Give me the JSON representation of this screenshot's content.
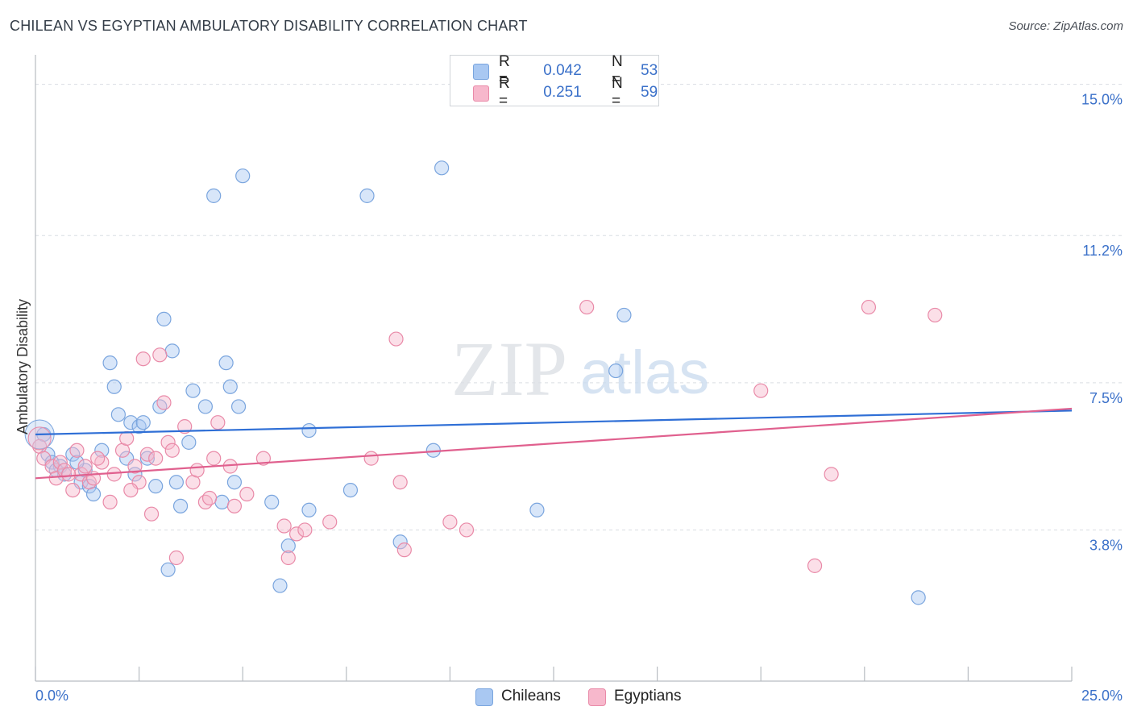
{
  "title": "CHILEAN VS EGYPTIAN AMBULATORY DISABILITY CORRELATION CHART",
  "source": "Source: ZipAtlas.com",
  "watermark": {
    "zip": "ZIP",
    "atlas": "atlas"
  },
  "legend_top": [
    {
      "r_label": "R =",
      "r_value": "0.042",
      "n_label": "N =",
      "n_value": "53",
      "color": "#a9c8f2"
    },
    {
      "r_label": "R =",
      "r_value": "0.251",
      "n_label": "N =",
      "n_value": "59",
      "color": "#f7b8cc"
    }
  ],
  "legend_bottom": [
    {
      "label": "Chileans",
      "color": "#a9c8f2"
    },
    {
      "label": "Egyptians",
      "color": "#f7b8cc"
    }
  ],
  "chart_data": {
    "type": "scatter",
    "title": "CHILEAN VS EGYPTIAN AMBULATORY DISABILITY CORRELATION CHART",
    "xlabel": "",
    "ylabel": "Ambulatory Disability",
    "xlim": [
      0,
      25
    ],
    "ylim": [
      0,
      15.5
    ],
    "x_tick_labels": [
      {
        "value": 0,
        "label": "0.0%"
      },
      {
        "value": 25,
        "label": "25.0%"
      }
    ],
    "y_tick_labels": [
      {
        "value": 15.0,
        "label": "15.0%"
      },
      {
        "value": 11.2,
        "label": "11.2%"
      },
      {
        "value": 7.5,
        "label": "7.5%"
      },
      {
        "value": 3.8,
        "label": "3.8%"
      }
    ],
    "x_minor_ticks": [
      0,
      2.5,
      5,
      7.5,
      10,
      12.5,
      15,
      17.5,
      20,
      22.5,
      25
    ],
    "grid": true,
    "series": [
      {
        "name": "Chileans",
        "color": "#a9c8f2",
        "stroke": "#7aa5de",
        "trend_color": "#2f6fd6",
        "trend": [
          [
            0,
            6.2
          ],
          [
            25,
            6.8
          ]
        ],
        "points": [
          [
            0.2,
            6.2
          ],
          [
            0.3,
            5.7
          ],
          [
            0.4,
            5.5
          ],
          [
            0.6,
            5.4
          ],
          [
            0.7,
            5.2
          ],
          [
            0.9,
            5.7
          ],
          [
            1.1,
            5.0
          ],
          [
            1.2,
            5.3
          ],
          [
            1.3,
            4.9
          ],
          [
            1.4,
            4.7
          ],
          [
            1.6,
            5.8
          ],
          [
            1.8,
            8.0
          ],
          [
            1.9,
            7.4
          ],
          [
            2.0,
            6.7
          ],
          [
            2.2,
            5.6
          ],
          [
            2.3,
            6.5
          ],
          [
            2.4,
            5.2
          ],
          [
            2.5,
            6.4
          ],
          [
            2.6,
            6.5
          ],
          [
            2.7,
            5.6
          ],
          [
            3.0,
            6.9
          ],
          [
            3.1,
            9.1
          ],
          [
            3.2,
            2.8
          ],
          [
            3.3,
            8.3
          ],
          [
            3.4,
            5.0
          ],
          [
            3.5,
            4.4
          ],
          [
            3.7,
            6.0
          ],
          [
            3.8,
            7.3
          ],
          [
            4.1,
            6.9
          ],
          [
            4.3,
            12.2
          ],
          [
            4.5,
            4.5
          ],
          [
            4.6,
            8.0
          ],
          [
            4.7,
            7.4
          ],
          [
            4.8,
            5.0
          ],
          [
            4.9,
            6.9
          ],
          [
            5.0,
            12.7
          ],
          [
            5.7,
            4.5
          ],
          [
            5.9,
            2.4
          ],
          [
            6.1,
            3.4
          ],
          [
            6.6,
            4.3
          ],
          [
            6.6,
            6.3
          ],
          [
            7.6,
            4.8
          ],
          [
            8.0,
            12.2
          ],
          [
            8.8,
            3.5
          ],
          [
            9.6,
            5.8
          ],
          [
            9.8,
            12.9
          ],
          [
            12.1,
            4.3
          ],
          [
            14.0,
            7.8
          ],
          [
            14.2,
            9.2
          ],
          [
            21.3,
            2.1
          ],
          [
            0.5,
            5.3
          ],
          [
            1.0,
            5.5
          ],
          [
            2.9,
            4.9
          ]
        ]
      },
      {
        "name": "Egyptians",
        "color": "#f7b8cc",
        "stroke": "#e98aa8",
        "trend_color": "#e0608e",
        "trend": [
          [
            0,
            5.1
          ],
          [
            25,
            6.85
          ]
        ],
        "points": [
          [
            0.1,
            5.9
          ],
          [
            0.2,
            5.6
          ],
          [
            0.4,
            5.4
          ],
          [
            0.5,
            5.1
          ],
          [
            0.6,
            5.5
          ],
          [
            0.7,
            5.3
          ],
          [
            0.9,
            4.8
          ],
          [
            1.0,
            5.8
          ],
          [
            1.1,
            5.2
          ],
          [
            1.2,
            5.4
          ],
          [
            1.3,
            5.0
          ],
          [
            1.4,
            5.1
          ],
          [
            1.6,
            5.5
          ],
          [
            1.8,
            4.5
          ],
          [
            1.9,
            5.2
          ],
          [
            2.1,
            5.8
          ],
          [
            2.2,
            6.1
          ],
          [
            2.4,
            5.4
          ],
          [
            2.5,
            5.0
          ],
          [
            2.6,
            8.1
          ],
          [
            2.7,
            5.7
          ],
          [
            2.8,
            4.2
          ],
          [
            2.9,
            5.6
          ],
          [
            3.0,
            8.2
          ],
          [
            3.1,
            7.0
          ],
          [
            3.2,
            6.0
          ],
          [
            3.3,
            5.8
          ],
          [
            3.4,
            3.1
          ],
          [
            3.6,
            6.4
          ],
          [
            3.8,
            5.0
          ],
          [
            3.9,
            5.3
          ],
          [
            4.1,
            4.5
          ],
          [
            4.2,
            4.6
          ],
          [
            4.3,
            5.6
          ],
          [
            4.4,
            6.5
          ],
          [
            4.7,
            5.4
          ],
          [
            4.8,
            4.4
          ],
          [
            5.1,
            4.7
          ],
          [
            5.5,
            5.6
          ],
          [
            6.0,
            3.9
          ],
          [
            6.1,
            3.1
          ],
          [
            6.3,
            3.7
          ],
          [
            6.5,
            3.8
          ],
          [
            7.1,
            4.0
          ],
          [
            8.1,
            5.6
          ],
          [
            8.7,
            8.6
          ],
          [
            8.8,
            5.0
          ],
          [
            8.9,
            3.3
          ],
          [
            10.0,
            4.0
          ],
          [
            10.4,
            3.8
          ],
          [
            13.3,
            9.4
          ],
          [
            17.5,
            7.3
          ],
          [
            18.8,
            2.9
          ],
          [
            19.2,
            5.2
          ],
          [
            20.1,
            9.4
          ],
          [
            21.7,
            9.2
          ],
          [
            0.8,
            5.2
          ],
          [
            1.5,
            5.6
          ],
          [
            2.3,
            4.8
          ]
        ]
      }
    ]
  }
}
